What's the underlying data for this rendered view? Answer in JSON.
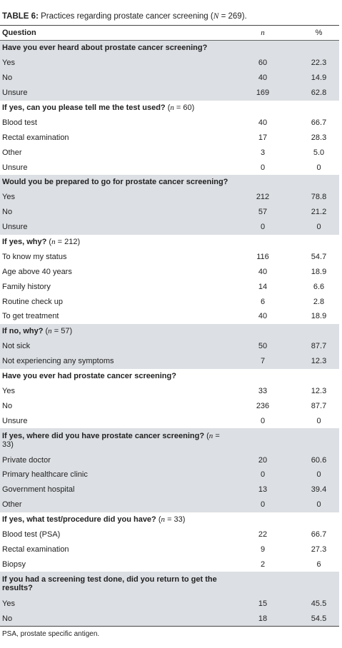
{
  "caption": {
    "label": "TABLE 6:",
    "text": " Practices regarding prostate cancer screening (",
    "nvar": "N",
    "tail": " = 269)."
  },
  "header": {
    "question": "Question",
    "n": "n",
    "pct": "%"
  },
  "sections": [
    {
      "question": "Have you ever heard about prostate cancer screening?",
      "shaded": true,
      "rows": [
        {
          "label": "Yes",
          "n": "60",
          "pct": "22.3"
        },
        {
          "label": "No",
          "n": "40",
          "pct": "14.9"
        },
        {
          "label": "Unsure",
          "n": "169",
          "pct": "62.8"
        }
      ]
    },
    {
      "question": "If yes, can you please tell me the test used? (n = 60)",
      "shaded": false,
      "rows": [
        {
          "label": "Blood test",
          "n": "40",
          "pct": "66.7"
        },
        {
          "label": "Rectal examination",
          "n": "17",
          "pct": "28.3"
        },
        {
          "label": "Other",
          "n": "3",
          "pct": "5.0"
        },
        {
          "label": "Unsure",
          "n": "0",
          "pct": "0"
        }
      ]
    },
    {
      "question": "Would you be prepared to go for prostate cancer screening?",
      "shaded": true,
      "rows": [
        {
          "label": "Yes",
          "n": "212",
          "pct": "78.8"
        },
        {
          "label": "No",
          "n": "57",
          "pct": "21.2"
        },
        {
          "label": "Unsure",
          "n": "0",
          "pct": "0"
        }
      ]
    },
    {
      "question": "If yes, why? (n = 212)",
      "shaded": false,
      "rows": [
        {
          "label": "To know my status",
          "n": "116",
          "pct": "54.7"
        },
        {
          "label": "Age above 40 years",
          "n": "40",
          "pct": "18.9"
        },
        {
          "label": "Family history",
          "n": "14",
          "pct": "6.6"
        },
        {
          "label": "Routine check up",
          "n": "6",
          "pct": "2.8"
        },
        {
          "label": "To get treatment",
          "n": "40",
          "pct": "18.9"
        }
      ]
    },
    {
      "question": "If no, why? (n = 57)",
      "shaded": true,
      "rows": [
        {
          "label": "Not sick",
          "n": "50",
          "pct": "87.7"
        },
        {
          "label": "Not experiencing any symptoms",
          "n": "7",
          "pct": "12.3"
        }
      ]
    },
    {
      "question": "Have you ever had prostate cancer screening?",
      "shaded": false,
      "rows": [
        {
          "label": "Yes",
          "n": "33",
          "pct": "12.3"
        },
        {
          "label": "No",
          "n": "236",
          "pct": "87.7"
        },
        {
          "label": "Unsure",
          "n": "0",
          "pct": "0"
        }
      ]
    },
    {
      "question": "If yes, where did you have prostate cancer screening? (n = 33)",
      "shaded": true,
      "tall": true,
      "rows": [
        {
          "label": "Private doctor",
          "n": "20",
          "pct": "60.6"
        },
        {
          "label": "Primary healthcare clinic",
          "n": "0",
          "pct": "0"
        },
        {
          "label": "Government hospital",
          "n": "13",
          "pct": "39.4"
        },
        {
          "label": "Other",
          "n": "0",
          "pct": "0"
        }
      ]
    },
    {
      "question": "If yes, what test/procedure did you have? (n = 33)",
      "shaded": false,
      "rows": [
        {
          "label": "Blood test (PSA)",
          "n": "22",
          "pct": "66.7"
        },
        {
          "label": "Rectal examination",
          "n": "9",
          "pct": "27.3"
        },
        {
          "label": "Biopsy",
          "n": "2",
          "pct": "6"
        }
      ]
    },
    {
      "question": "If you had a screening test done, did you return to get the results?",
      "shaded": true,
      "tall": true,
      "rows": [
        {
          "label": "Yes",
          "n": "15",
          "pct": "45.5"
        },
        {
          "label": "No",
          "n": "18",
          "pct": "54.5"
        }
      ]
    }
  ],
  "footnote": "PSA, prostate specific antigen."
}
